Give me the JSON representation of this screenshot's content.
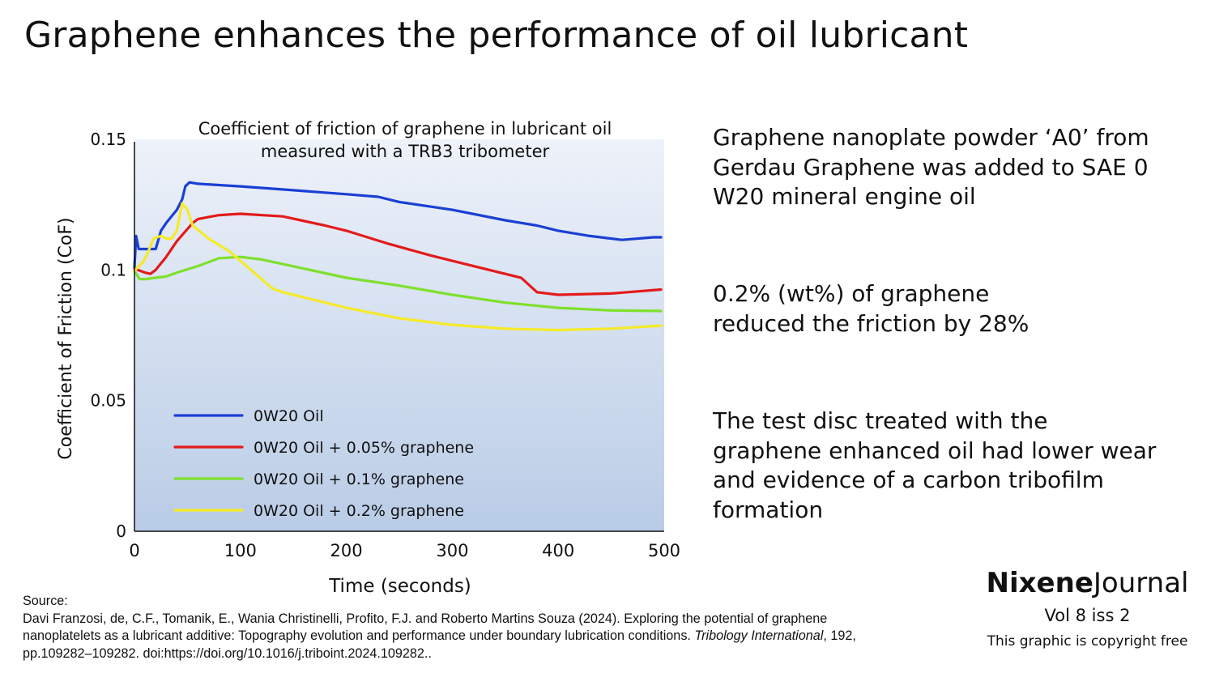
{
  "page": {
    "title": "Graphene enhances the performance of oil lubricant"
  },
  "notes": [
    {
      "lines": [
        "Graphene nanoplate powder ‘A0’ from",
        "Gerdau Graphene  was added to SAE 0",
        "W20 mineral engine oil"
      ]
    },
    {
      "lines": [
        "0.2% (wt%) of graphene",
        "reduced the friction by 28%"
      ]
    },
    {
      "lines": [
        "The test disc treated with the",
        "graphene enhanced oil had lower wear",
        "and evidence of a carbon tribofilm",
        "formation"
      ]
    }
  ],
  "source": {
    "label": "Source:",
    "text_before": "Davi Franzosi, de, C.F., Tomanik, E., Wania Christinelli, Profito, F.J. and Roberto Martins Souza (2024). Exploring the potential of graphene nanoplatelets as a lubricant additive: Topography evolution and performance under boundary lubrication conditions. ",
    "journal": "Tribology International",
    "text_after": ", 192, pp.109282–109282. doi:https://doi.org/10.1016/j.triboint.2024.109282.."
  },
  "brand": {
    "name_bold": "Nixene",
    "name_regular": "Journal",
    "issue": "Vol 8  iss 2",
    "note": "This graphic is copyright free"
  },
  "chart_data": {
    "type": "line",
    "title": "Coefficient of friction of graphene in lubricant oil measured with a TRB3 tribometer",
    "title_lines": [
      "Coefficient of friction of graphene in lubricant oil",
      "measured with a TRB3 tribometer"
    ],
    "xlabel": "Time (seconds)",
    "ylabel": "Coefficient of Friction (CoF)",
    "xlim": [
      0,
      500
    ],
    "ylim": [
      0,
      0.15
    ],
    "xticks": [
      0,
      100,
      200,
      300,
      400,
      500
    ],
    "xtick_labels": [
      "0",
      "100",
      "200",
      "300",
      "400",
      "500"
    ],
    "yticks": [
      0,
      0.05,
      0.1,
      0.15
    ],
    "ytick_labels": [
      "0",
      "0.05",
      "0.1",
      "0.15"
    ],
    "grid": false,
    "legend_position": "bottom-left",
    "background_gradient": [
      "#eef2fa",
      "#b9cce6"
    ],
    "series": [
      {
        "name": "0W20 Oil",
        "color": "#1a3fd4",
        "x": [
          0,
          1.5,
          4,
          8,
          12,
          20,
          25,
          30,
          40,
          45,
          48,
          52,
          60,
          100,
          150,
          200,
          230,
          250,
          300,
          350,
          380,
          400,
          430,
          460,
          490,
          497
        ],
        "y": [
          0.101,
          0.113,
          0.108,
          0.108,
          0.108,
          0.108,
          0.115,
          0.118,
          0.123,
          0.127,
          0.132,
          0.1335,
          0.133,
          0.132,
          0.1305,
          0.129,
          0.128,
          0.126,
          0.123,
          0.119,
          0.117,
          0.115,
          0.113,
          0.1115,
          0.1125,
          0.1125
        ]
      },
      {
        "name": "0W20 Oil + 0.05% graphene",
        "color": "#e31b1b",
        "x": [
          0,
          10,
          15,
          20,
          30,
          40,
          55,
          60,
          80,
          100,
          140,
          180,
          200,
          240,
          280,
          310,
          365,
          380,
          400,
          450,
          497
        ],
        "y": [
          0.1005,
          0.099,
          0.0985,
          0.1,
          0.105,
          0.111,
          0.118,
          0.1195,
          0.121,
          0.1215,
          0.1205,
          0.117,
          0.115,
          0.11,
          0.1055,
          0.1025,
          0.097,
          0.0915,
          0.0905,
          0.091,
          0.0925
        ]
      },
      {
        "name": "0W20 Oil + 0.1% graphene",
        "color": "#7ee02c",
        "x": [
          0,
          5,
          10,
          20,
          30,
          40,
          60,
          80,
          100,
          120,
          160,
          200,
          250,
          300,
          350,
          400,
          450,
          497
        ],
        "y": [
          0.0995,
          0.0965,
          0.0965,
          0.097,
          0.0975,
          0.099,
          0.1015,
          0.1045,
          0.105,
          0.104,
          0.1005,
          0.097,
          0.094,
          0.0905,
          0.0875,
          0.0855,
          0.0845,
          0.0843
        ]
      },
      {
        "name": "0W20 Oil + 0.2% graphene",
        "color": "#f5ea28",
        "x": [
          0,
          3,
          8,
          12,
          18,
          25,
          30,
          35,
          40,
          45,
          50,
          55,
          70,
          90,
          110,
          130,
          140,
          160,
          200,
          250,
          300,
          350,
          400,
          450,
          497
        ],
        "y": [
          0.0995,
          0.101,
          0.103,
          0.106,
          0.112,
          0.113,
          0.112,
          0.112,
          0.115,
          0.1255,
          0.123,
          0.117,
          0.112,
          0.107,
          0.1,
          0.093,
          0.0915,
          0.0895,
          0.0855,
          0.0815,
          0.079,
          0.0775,
          0.077,
          0.0775,
          0.0787
        ]
      }
    ]
  }
}
